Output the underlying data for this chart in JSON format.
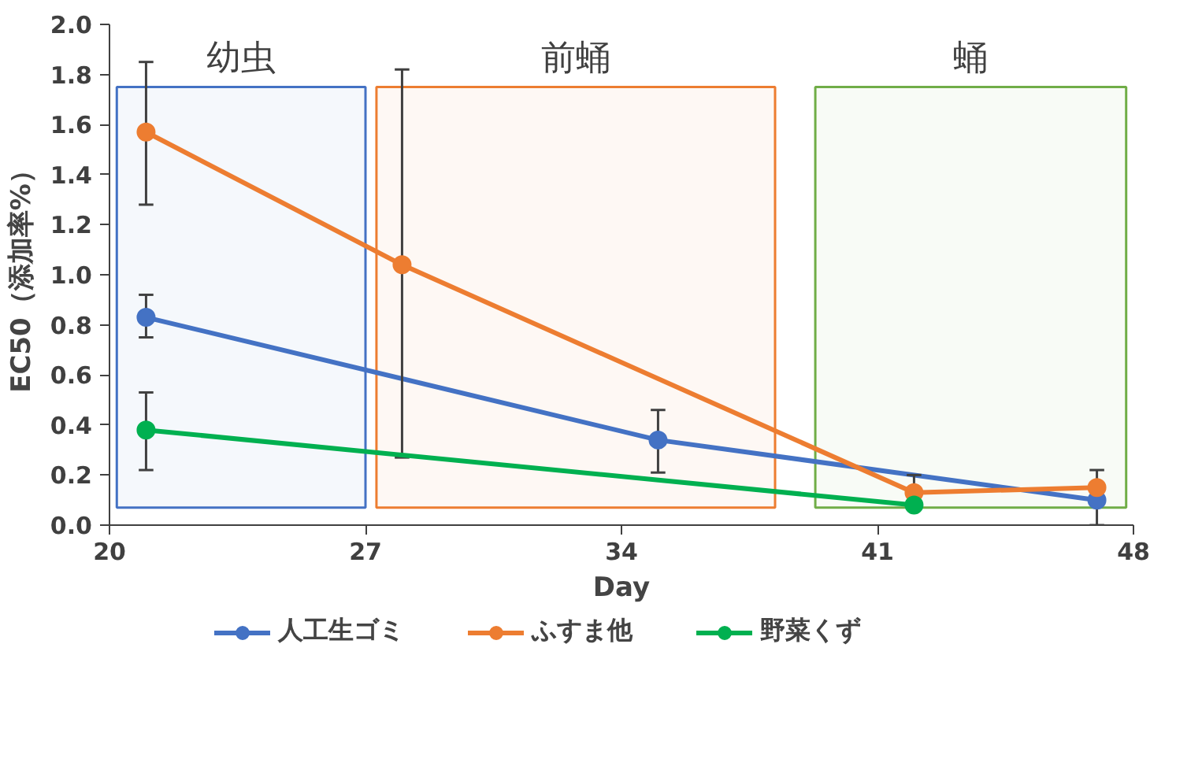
{
  "chart_data": {
    "type": "line",
    "xlabel": "Day",
    "ylabel": "EC50（添加率%）",
    "xlim": [
      20,
      48
    ],
    "xticks": [
      20,
      27,
      34,
      41,
      48
    ],
    "ylim": [
      0,
      2.0
    ],
    "yticks": [
      {
        "value": 0,
        "label": "0.0"
      },
      0.2,
      0.4,
      0.6,
      0.8,
      {
        "value": 1,
        "label": "1.0"
      },
      1.2,
      1.4,
      1.6,
      1.8,
      {
        "value": 2,
        "label": "2.0"
      }
    ],
    "grid": false,
    "legend": "bottom",
    "marker": "circle",
    "line_style": "solid",
    "series": [
      {
        "name": "人工生ゴミ",
        "color": "#4472c4",
        "x": [
          21,
          35,
          47
        ],
        "values": [
          0.83,
          0.34,
          0.1
        ],
        "errors": [
          [
            0.75,
            0.92
          ],
          [
            0.21,
            0.46
          ],
          [
            0.0,
            0.1
          ]
        ]
      },
      {
        "name": "ふすま他",
        "color": "#ed7d31",
        "x": [
          21,
          28,
          42,
          47
        ],
        "values": [
          1.57,
          1.04,
          0.13,
          0.15
        ],
        "errors": [
          [
            1.28,
            1.85
          ],
          [
            0.27,
            1.82
          ],
          [
            0.13,
            0.2
          ],
          [
            0.15,
            0.22
          ]
        ]
      },
      {
        "name": "野菜くず",
        "color": "#00b050",
        "x": [
          21,
          42
        ],
        "values": [
          0.38,
          0.08
        ],
        "errors": [
          [
            0.22,
            0.53
          ],
          null
        ]
      }
    ],
    "bands": [
      {
        "axis": "x",
        "from": 20.2,
        "to": 27.0,
        "label": "幼虫",
        "color": "#4472c4"
      },
      {
        "axis": "x",
        "from": 27.3,
        "to": 38.2,
        "label": "前蛹",
        "color": "#ed7d31"
      },
      {
        "axis": "x",
        "from": 39.3,
        "to": 47.8,
        "label": "蛹",
        "color": "#70ad47"
      }
    ]
  }
}
